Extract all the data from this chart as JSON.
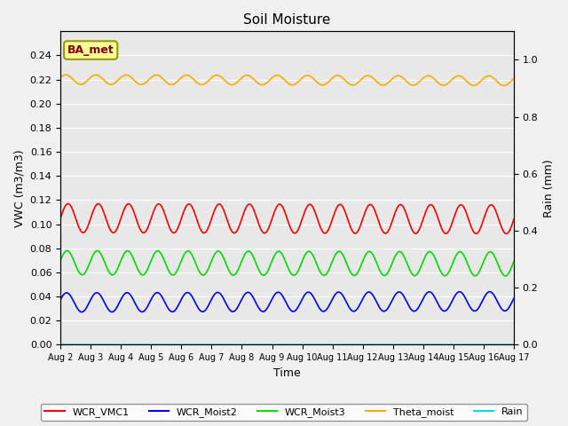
{
  "title": "Soil Moisture",
  "xlabel": "Time",
  "ylabel_left": "VWC (m3/m3)",
  "ylabel_right": "Rain (mm)",
  "background_color": "#f0f0f0",
  "plot_bg_color": "#e8e8e8",
  "ylim_left": [
    0.0,
    0.26
  ],
  "ylim_right": [
    0.0,
    1.1
  ],
  "yticks_left": [
    0.0,
    0.02,
    0.04,
    0.06,
    0.08,
    0.1,
    0.12,
    0.14,
    0.16,
    0.18,
    0.2,
    0.22,
    0.24
  ],
  "yticks_right": [
    0.0,
    0.2,
    0.4,
    0.6,
    0.8,
    1.0
  ],
  "n_days": 15,
  "n_points": 1440,
  "series": {
    "WCR_VMC1": {
      "color": "#ff0000",
      "mean": 0.105,
      "amplitude": 0.012,
      "period_days": 1.0,
      "phase": 0.0,
      "trend": -0.001
    },
    "WCR_Moist2": {
      "color": "#0000ff",
      "mean": 0.035,
      "amplitude": 0.008,
      "period_days": 1.0,
      "phase": 0.3,
      "trend": 0.001
    },
    "WCR_Moist3": {
      "color": "#00dd00",
      "mean": 0.068,
      "amplitude": 0.01,
      "period_days": 1.0,
      "phase": 0.2,
      "trend": -0.001
    },
    "Theta_moist": {
      "color": "#ffaa00",
      "mean": 0.22,
      "amplitude": 0.004,
      "period_days": 1.0,
      "phase": 0.5,
      "trend": -0.001
    },
    "Rain": {
      "color": "#00ddee",
      "mean": 0.0,
      "amplitude": 0.0,
      "period_days": 1.0,
      "phase": 0.0,
      "trend": 0.0
    }
  },
  "legend_labels": [
    "WCR_VMC1",
    "WCR_Moist2",
    "WCR_Moist3",
    "Theta_moist",
    "Rain"
  ],
  "legend_colors": [
    "#ff0000",
    "#0000ff",
    "#00dd00",
    "#ffaa00",
    "#00ddee"
  ],
  "annotation_text": "BA_met",
  "annotation_color": "#8b0000",
  "annotation_bg": "#ffff99",
  "annotation_border": "#999900",
  "xtick_labels": [
    "Aug 2",
    "Aug 3",
    "Aug 4",
    "Aug 5",
    "Aug 6",
    "Aug 7",
    "Aug 8",
    "Aug 9",
    "Aug 10",
    "Aug 11",
    "Aug 12",
    "Aug 13",
    "Aug 14",
    "Aug 15",
    "Aug 16",
    "Aug 17"
  ]
}
